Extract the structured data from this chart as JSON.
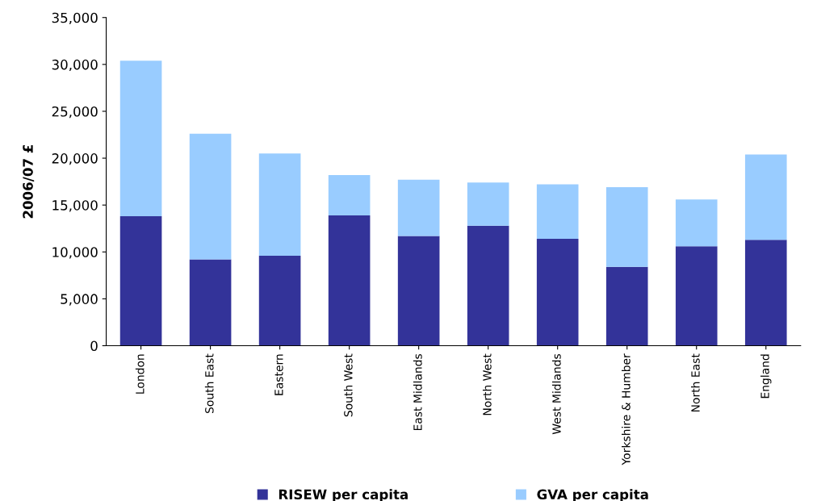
{
  "chart_data": {
    "type": "bar",
    "stacked": true,
    "ylabel": "2006/07 £",
    "categories": [
      "London",
      "South East",
      "Eastern",
      "South West",
      "East Midlands",
      "North West",
      "West Midlands",
      "Yorkshire & Humber",
      "North East",
      "England"
    ],
    "series": [
      {
        "name": "RISEW per capita",
        "color": "#333399",
        "values": [
          13800,
          9200,
          9600,
          13900,
          11700,
          12800,
          11400,
          8400,
          10600,
          11300
        ]
      },
      {
        "name": "GVA per capita",
        "color": "#99ccff",
        "values": [
          16600,
          13400,
          10900,
          4300,
          6000,
          4600,
          5800,
          8500,
          5000,
          9100
        ]
      }
    ],
    "ylim": [
      0,
      35000
    ],
    "yticks": [
      {
        "value": 0,
        "label": "0"
      },
      {
        "value": 5000,
        "label": "5,000"
      },
      {
        "value": 10000,
        "label": "10,000"
      },
      {
        "value": 15000,
        "label": "15,000"
      },
      {
        "value": 20000,
        "label": "20,000"
      },
      {
        "value": 25000,
        "label": "25,000"
      },
      {
        "value": 30000,
        "label": "30,000"
      },
      {
        "value": 35000,
        "label": "35,000"
      }
    ],
    "grid": false,
    "legend": "bottom"
  }
}
